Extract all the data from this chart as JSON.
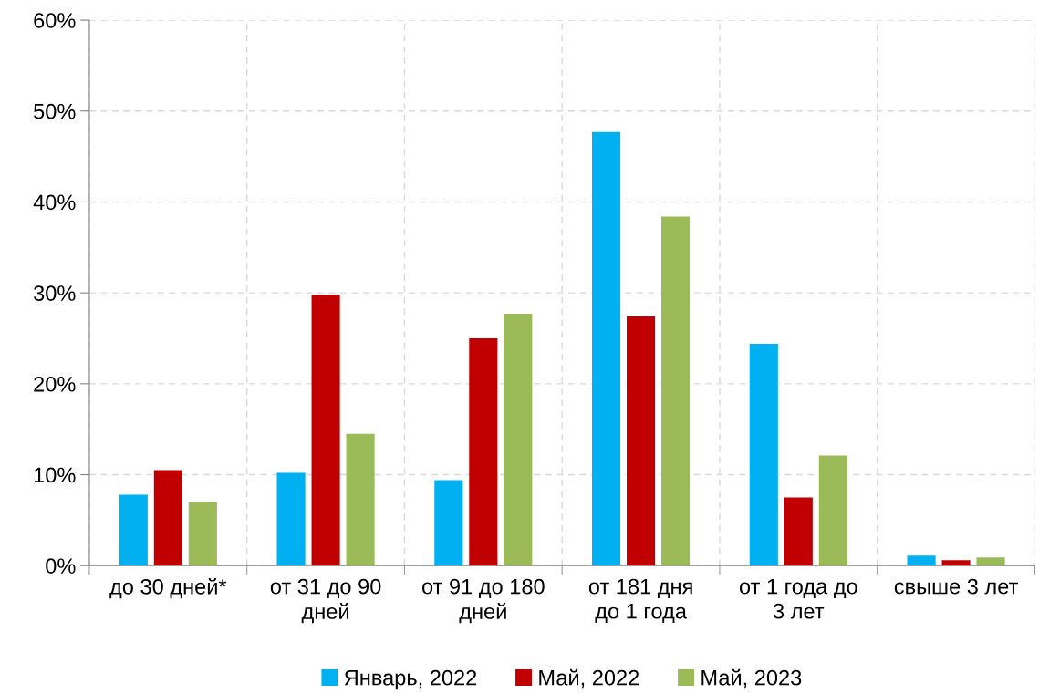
{
  "chart_data": {
    "type": "bar",
    "categories": [
      "до 30 дней*",
      "от 31 до 90\nдней",
      "от 91 до 180\nдней",
      "от 181 дня\nдо 1 года",
      "от 1 года до\n3 лет",
      "свыше 3 лет"
    ],
    "series": [
      {
        "name": "Январь, 2022",
        "color": "#00b0f0",
        "values": [
          7.8,
          10.2,
          9.4,
          47.7,
          24.4,
          1.1
        ]
      },
      {
        "name": "Май, 2022",
        "color": "#c00000",
        "values": [
          10.5,
          29.8,
          25.0,
          27.4,
          7.5,
          0.6
        ]
      },
      {
        "name": "Май, 2023",
        "color": "#9bbb59",
        "values": [
          7.0,
          14.5,
          27.7,
          38.4,
          12.1,
          0.9
        ]
      }
    ],
    "ylim": [
      0,
      60
    ],
    "yticks": [
      {
        "value": 0,
        "label": "0%"
      },
      {
        "value": 10,
        "label": "10%"
      },
      {
        "value": 20,
        "label": "20%"
      },
      {
        "value": 30,
        "label": "30%"
      },
      {
        "value": 40,
        "label": "40%"
      },
      {
        "value": 50,
        "label": "50%"
      },
      {
        "value": 60,
        "label": "60%"
      }
    ],
    "grid": true,
    "legend": "bottom"
  }
}
